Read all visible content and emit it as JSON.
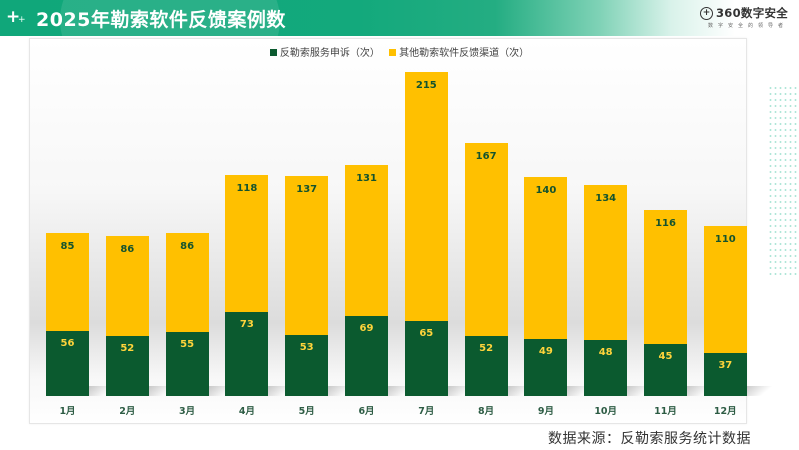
{
  "header": {
    "title": "2025年勒索软件反馈案例数",
    "logo_text": "360数字安全",
    "logo_subtitle": "数字安全的领导者"
  },
  "legend": {
    "items": [
      {
        "label": "反勒索服务申诉（次）",
        "color": "#0b5a2f"
      },
      {
        "label": "其他勒索软件反馈渠道（次）",
        "color": "#ffc000"
      }
    ]
  },
  "source": "数据来源：反勒索服务统计数据",
  "colors": {
    "series1": "#0b5a2f",
    "series2": "#ffc000",
    "header_green": "#10a77a"
  },
  "chart_data": {
    "type": "bar",
    "stacked": true,
    "title": "2025年勒索软件反馈案例数",
    "xlabel": "",
    "ylabel": "",
    "categories": [
      "1月",
      "2月",
      "3月",
      "4月",
      "5月",
      "6月",
      "7月",
      "8月",
      "9月",
      "10月",
      "11月",
      "12月"
    ],
    "series": [
      {
        "name": "反勒索服务申诉（次）",
        "color": "#0b5a2f",
        "values": [
          56,
          52,
          55,
          73,
          53,
          69,
          65,
          52,
          49,
          48,
          45,
          37
        ]
      },
      {
        "name": "其他勒索软件反馈渠道（次）",
        "color": "#ffc000",
        "values": [
          85,
          86,
          86,
          118,
          137,
          131,
          215,
          167,
          140,
          134,
          116,
          110
        ]
      }
    ],
    "data_labels": true,
    "grid": false,
    "y_axis_visible": false,
    "legend_position": "top",
    "annotation": "数据来源：反勒索服务统计数据"
  }
}
